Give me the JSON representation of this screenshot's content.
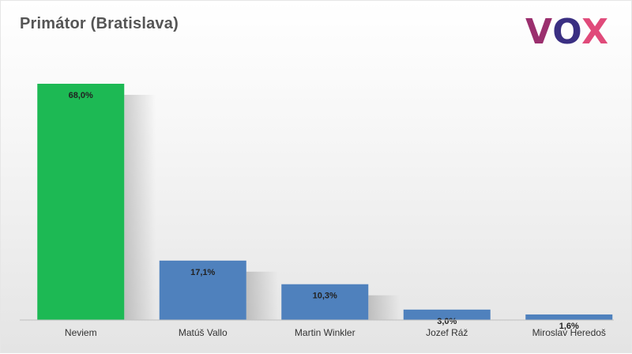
{
  "title": "Primátor (Bratislava)",
  "logo": {
    "text": "VOX",
    "color_v": "#9b2f6e",
    "color_o": "#3a2f82",
    "color_x": "#e04a7a"
  },
  "chart_data": {
    "type": "bar",
    "title": "Primátor (Bratislava)",
    "categories": [
      "Neviem",
      "Matúš Vallo",
      "Martin Winkler",
      "Jozef Ráž",
      "Miroslav Heredoš"
    ],
    "values": [
      68.0,
      17.1,
      10.3,
      3.0,
      1.6
    ],
    "value_labels": [
      "68,0%",
      "17,1%",
      "10,3%",
      "3,0%",
      "1,6%"
    ],
    "colors": [
      "#1db954",
      "#4f81bd",
      "#4f81bd",
      "#4f81bd",
      "#4f81bd"
    ],
    "xlabel": "",
    "ylabel": "",
    "ylim": [
      0,
      68
    ],
    "grid": false,
    "legend": "none"
  }
}
